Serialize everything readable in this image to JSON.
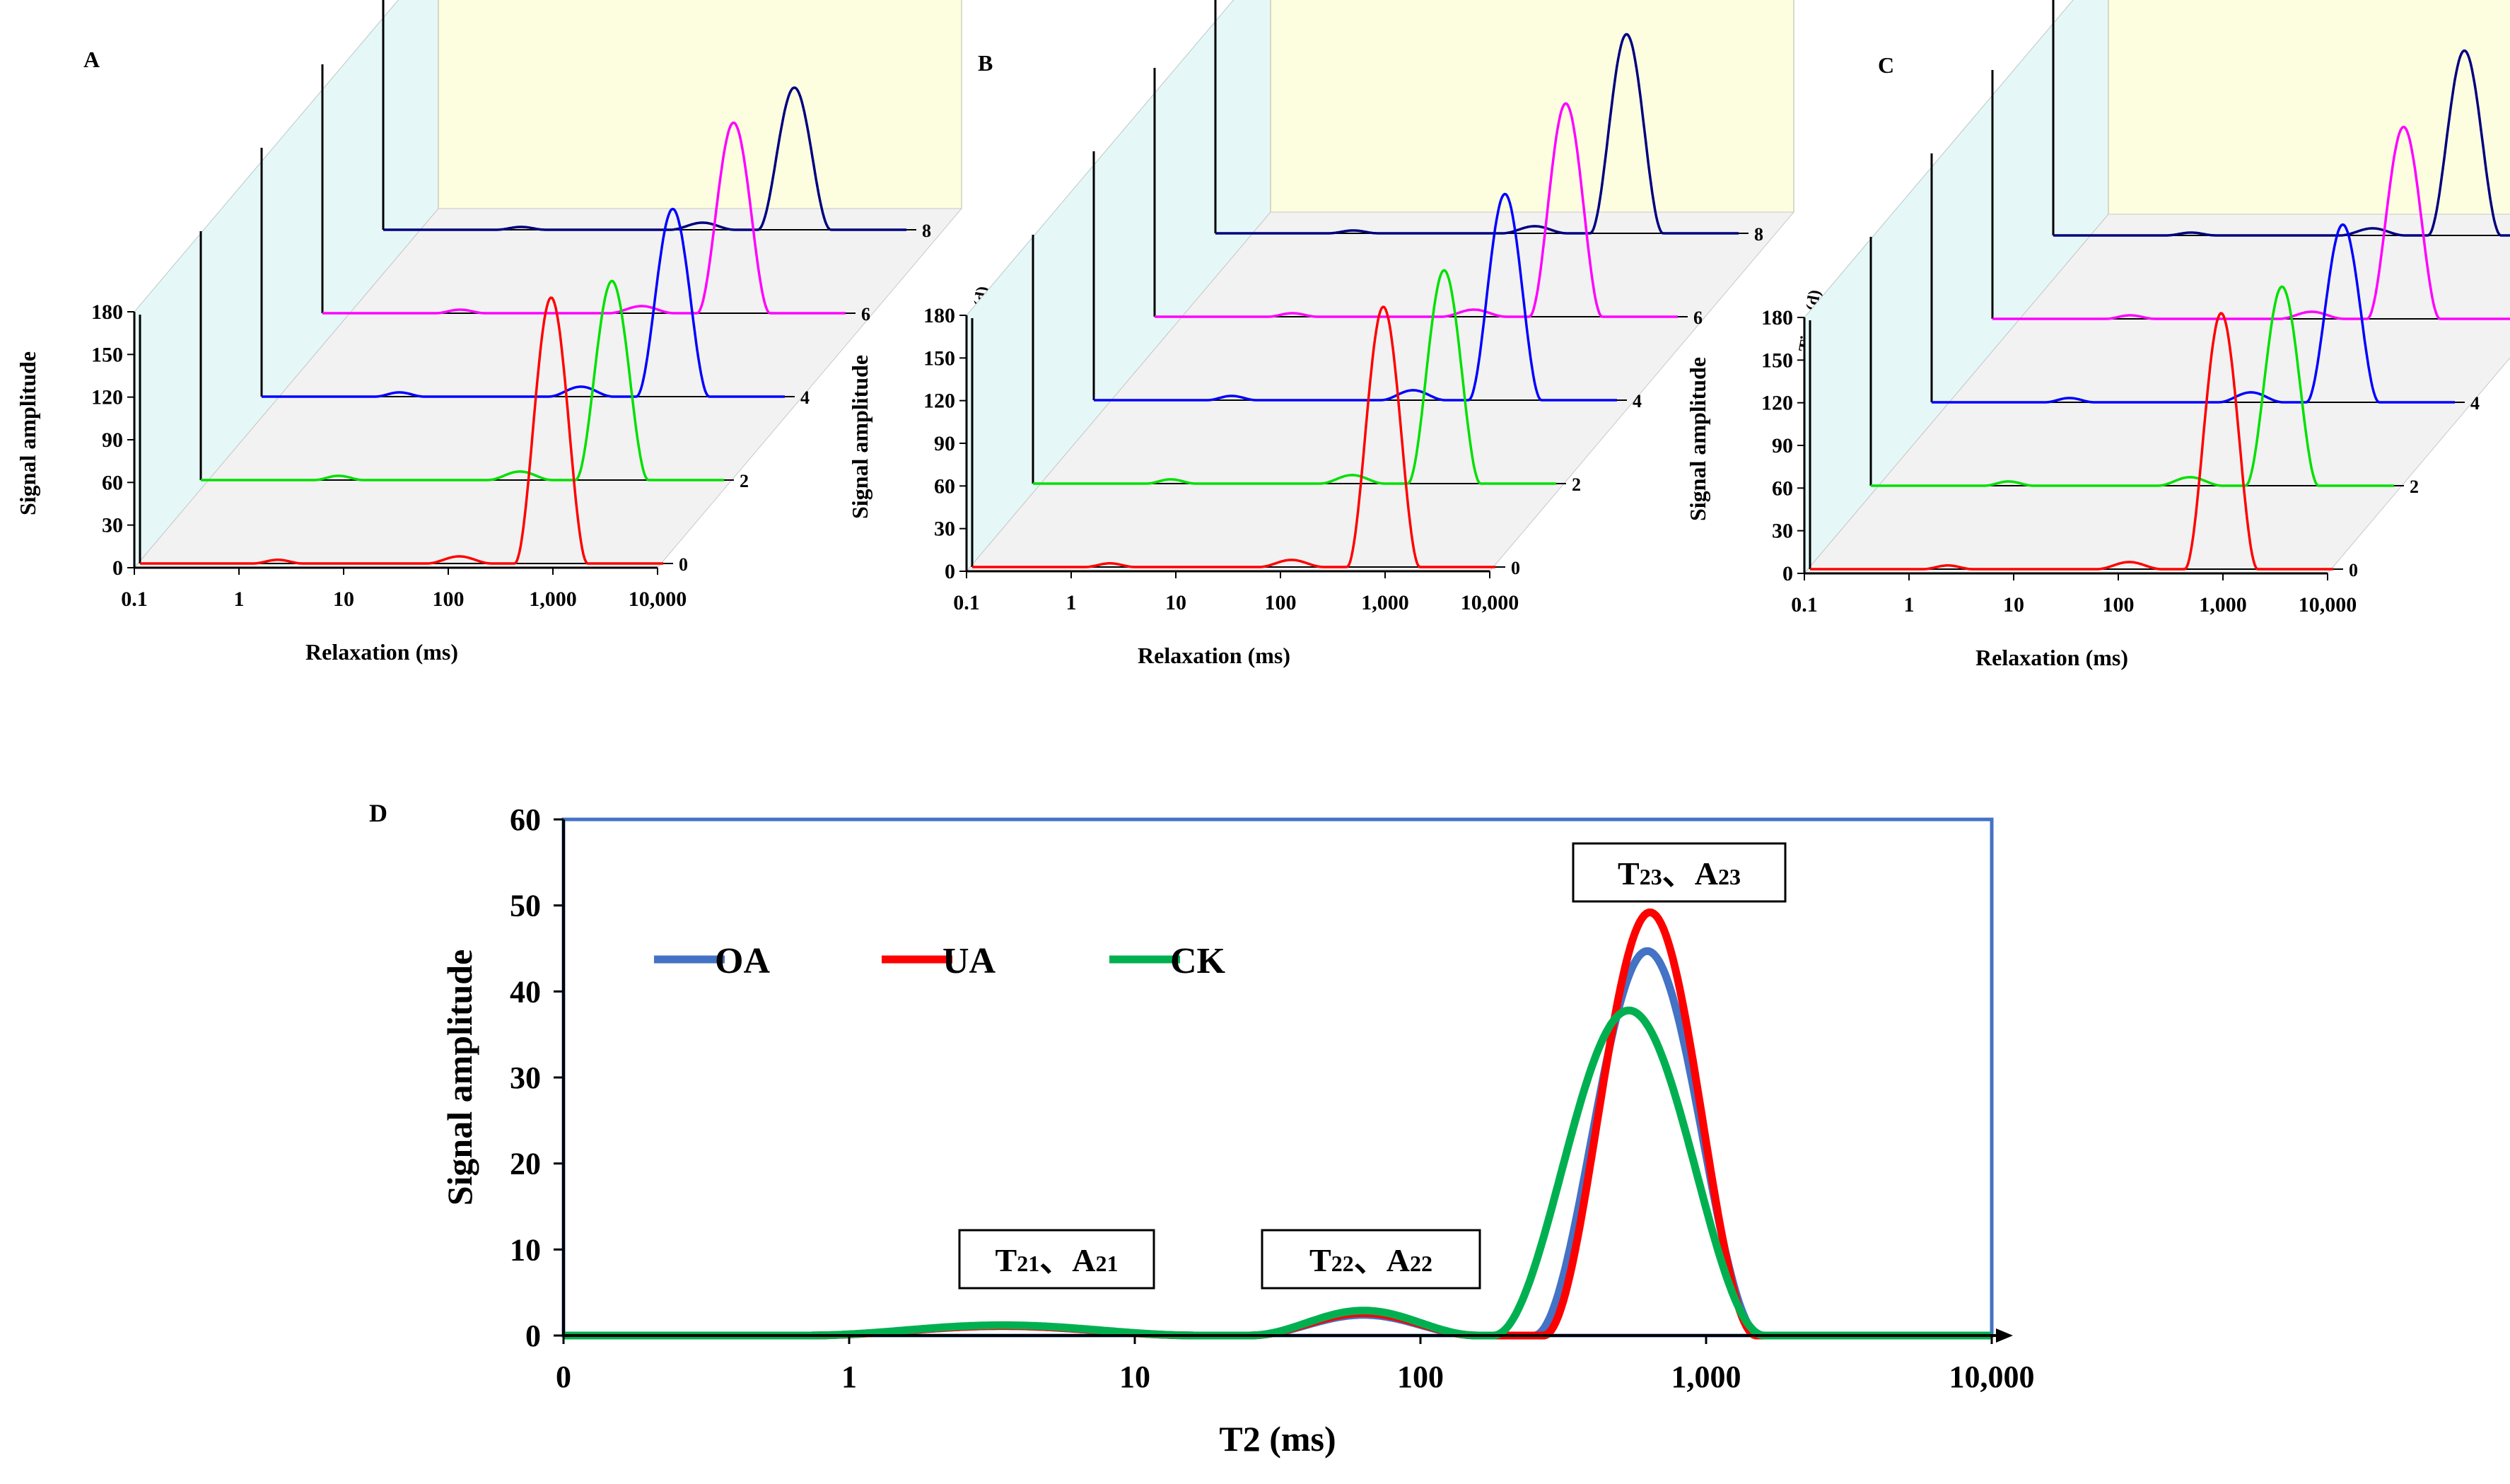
{
  "colors": {
    "sideWall": "#e6f7f7",
    "backWall": "#fdfde0",
    "floor": "#f2f2f2",
    "axis": "#000000",
    "day0": "#ff0000",
    "day2": "#00e000",
    "day4": "#0000ff",
    "day6": "#ff00ff",
    "day8": "#00007f",
    "OA": "#4472c4",
    "UA": "#ff0000",
    "CK": "#00b050",
    "frameD": "#4472c4"
  },
  "panels3d": {
    "yticks": [
      "0",
      "30",
      "60",
      "90",
      "120",
      "150",
      "180"
    ],
    "xticks": [
      "0.1",
      "1",
      "10",
      "100",
      "1,000",
      "10,000"
    ],
    "dayTicks": [
      "0",
      "2",
      "4",
      "6",
      "8"
    ],
    "ylabel": "Signal amplitude",
    "xlabel": "Relaxation (ms)",
    "zlabel": "Time (d)",
    "letters": [
      "A",
      "B",
      "C"
    ]
  },
  "chart_data": [
    {
      "panel": "A",
      "type": "line",
      "x_scale": "log",
      "xlim": [
        0.1,
        10000
      ],
      "ylim": [
        0,
        180
      ],
      "xlabel": "Relaxation (ms)",
      "ylabel": "Signal amplitude",
      "zlabel": "Time (d)",
      "series": [
        {
          "day": 0,
          "color": "#ff0000",
          "peaks": [
            [
              1.2,
              3.6,
              2.6
            ],
            [
              55,
              230,
              5
            ],
            [
              380,
              1900,
              187
            ]
          ]
        },
        {
          "day": 2,
          "color": "#00e000",
          "peaks": [
            [
              1.2,
              3.6,
              3
            ],
            [
              55,
              230,
              6
            ],
            [
              380,
              1900,
              140
            ]
          ]
        },
        {
          "day": 4,
          "color": "#0000ff",
          "peaks": [
            [
              1.2,
              3.6,
              3
            ],
            [
              55,
              230,
              7
            ],
            [
              380,
              1900,
              132
            ]
          ]
        },
        {
          "day": 6,
          "color": "#ff00ff",
          "peaks": [
            [
              1.2,
              3.6,
              2.5
            ],
            [
              55,
              230,
              5
            ],
            [
              380,
              1900,
              134
            ]
          ]
        },
        {
          "day": 8,
          "color": "#00007f",
          "peaks": [
            [
              1.2,
              3.6,
              2
            ],
            [
              55,
              230,
              5
            ],
            [
              380,
              1900,
              100
            ]
          ]
        }
      ]
    },
    {
      "panel": "B",
      "type": "line",
      "x_scale": "log",
      "xlim": [
        0.1,
        10000
      ],
      "ylim": [
        0,
        180
      ],
      "xlabel": "Relaxation (ms)",
      "ylabel": "Signal amplitude",
      "zlabel": "Time (d)",
      "series": [
        {
          "day": 0,
          "color": "#ff0000",
          "peaks": [
            [
              1.2,
              3.6,
              2.6
            ],
            [
              55,
              230,
              5
            ],
            [
              380,
              1900,
              183
            ]
          ]
        },
        {
          "day": 2,
          "color": "#00e000",
          "peaks": [
            [
              1.2,
              3.6,
              3
            ],
            [
              55,
              230,
              6
            ],
            [
              380,
              1900,
              150
            ]
          ]
        },
        {
          "day": 4,
          "color": "#0000ff",
          "peaks": [
            [
              1.2,
              3.6,
              3
            ],
            [
              55,
              230,
              7
            ],
            [
              380,
              1900,
              145
            ]
          ]
        },
        {
          "day": 6,
          "color": "#ff00ff",
          "peaks": [
            [
              1.2,
              3.6,
              2.5
            ],
            [
              55,
              230,
              5
            ],
            [
              380,
              1900,
              150
            ]
          ]
        },
        {
          "day": 8,
          "color": "#00007f",
          "peaks": [
            [
              1.2,
              3.6,
              2
            ],
            [
              55,
              230,
              5
            ],
            [
              380,
              1900,
              140
            ]
          ]
        }
      ]
    },
    {
      "panel": "C",
      "type": "line",
      "x_scale": "log",
      "xlim": [
        0.1,
        10000
      ],
      "ylim": [
        0,
        180
      ],
      "xlabel": "Relaxation (ms)",
      "ylabel": "Signal amplitude",
      "zlabel": "Time (d)",
      "series": [
        {
          "day": 0,
          "color": "#ff0000",
          "peaks": [
            [
              1.2,
              3.6,
              2.6
            ],
            [
              55,
              230,
              5
            ],
            [
              380,
              1900,
              180
            ]
          ]
        },
        {
          "day": 2,
          "color": "#00e000",
          "peaks": [
            [
              1.2,
              3.6,
              3
            ],
            [
              55,
              230,
              6
            ],
            [
              380,
              1900,
              140
            ]
          ]
        },
        {
          "day": 4,
          "color": "#0000ff",
          "peaks": [
            [
              1.2,
              3.6,
              3
            ],
            [
              55,
              230,
              7
            ],
            [
              380,
              1900,
              125
            ]
          ]
        },
        {
          "day": 6,
          "color": "#ff00ff",
          "peaks": [
            [
              1.2,
              3.6,
              2.5
            ],
            [
              55,
              230,
              5
            ],
            [
              380,
              1900,
              135
            ]
          ]
        },
        {
          "day": 8,
          "color": "#00007f",
          "peaks": [
            [
              1.2,
              3.6,
              2
            ],
            [
              55,
              230,
              5
            ],
            [
              380,
              1900,
              130
            ]
          ]
        }
      ]
    },
    {
      "panel": "D",
      "type": "line",
      "x_scale": "log",
      "xlim": [
        0.1,
        10000
      ],
      "ylim": [
        0,
        60
      ],
      "xticks": [
        "0",
        "1",
        "10",
        "100",
        "1,000",
        "10,000"
      ],
      "yticks": [
        "0",
        "10",
        "20",
        "30",
        "40",
        "50",
        "60"
      ],
      "xlabel": "T2 (ms)",
      "ylabel": "Signal amplitude",
      "legend": {
        "position": "upper-left",
        "entries": [
          "OA",
          "UA",
          "CK"
        ]
      },
      "annotations": [
        {
          "label": "T",
          "sub": "21",
          "sep": "、A",
          "sub2": "21"
        },
        {
          "label": "T",
          "sub": "22",
          "sep": "、A",
          "sub2": "22"
        },
        {
          "label": "T",
          "sub": "23",
          "sep": "、A",
          "sub2": "23"
        }
      ],
      "series": [
        {
          "name": "OA",
          "color": "#4472c4",
          "peaks": [
            [
              0.7,
              17,
              1.1
            ],
            [
              25,
              160,
              2.4
            ],
            [
              250,
              1550,
              44.7
            ]
          ]
        },
        {
          "name": "UA",
          "color": "#ff0000",
          "peaks": [
            [
              0.7,
              17,
              1.1
            ],
            [
              25,
              160,
              2.6
            ],
            [
              270,
              1500,
              49.2
            ]
          ]
        },
        {
          "name": "CK",
          "color": "#00b050",
          "peaks": [
            [
              0.7,
              17,
              1.2
            ],
            [
              25,
              160,
              2.9
            ],
            [
              180,
              1600,
              37.8
            ]
          ]
        }
      ]
    }
  ]
}
